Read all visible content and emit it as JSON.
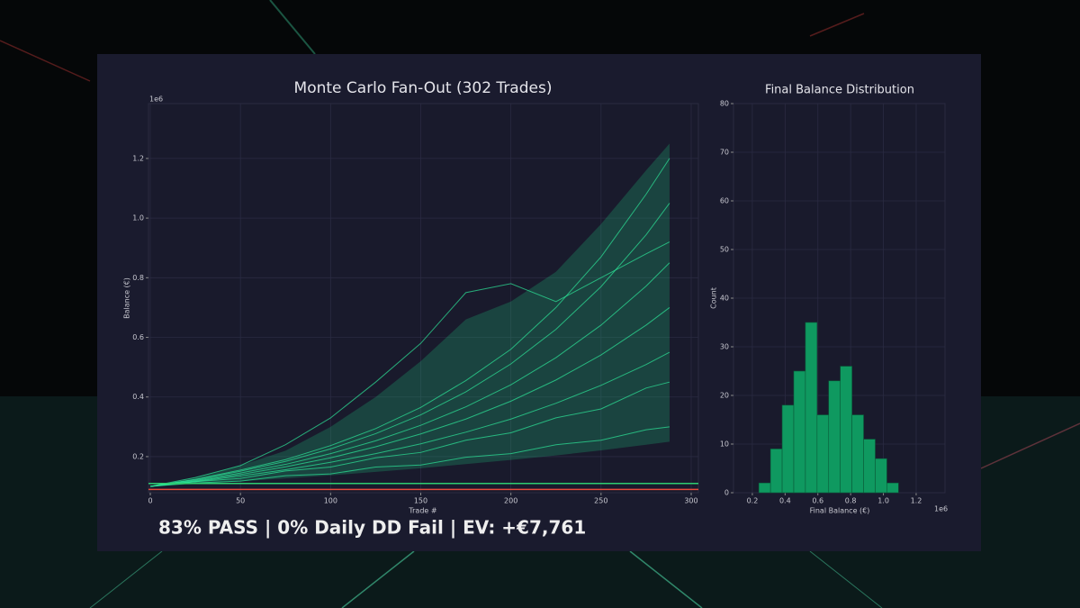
{
  "chart_data": [
    {
      "type": "line",
      "title": "Monte Carlo Fan-Out (302 Trades)",
      "xlabel": "Trade #",
      "ylabel": "Balance (€)",
      "offset_label": "1e6",
      "x": [
        0,
        25,
        50,
        75,
        100,
        125,
        150,
        175,
        200,
        225,
        250,
        275,
        288
      ],
      "band": {
        "color": "#1fd98a",
        "low": [
          0.1,
          0.108,
          0.117,
          0.127,
          0.137,
          0.149,
          0.161,
          0.175,
          0.189,
          0.204,
          0.221,
          0.24,
          0.25
        ],
        "high": [
          0.1,
          0.13,
          0.17,
          0.22,
          0.3,
          0.4,
          0.52,
          0.66,
          0.72,
          0.82,
          0.98,
          1.16,
          1.25
        ]
      },
      "series": [
        {
          "color": "#2ee89a",
          "values": [
            0.1,
            0.112,
            0.118,
            0.136,
            0.142,
            0.165,
            0.172,
            0.198,
            0.21,
            0.24,
            0.255,
            0.29,
            0.3
          ]
        },
        {
          "color": "#2ee89a",
          "values": [
            0.1,
            0.116,
            0.127,
            0.152,
            0.165,
            0.196,
            0.214,
            0.255,
            0.28,
            0.33,
            0.36,
            0.43,
            0.45
          ]
        },
        {
          "color": "#2ee89a",
          "values": [
            0.1,
            0.116,
            0.135,
            0.156,
            0.181,
            0.21,
            0.243,
            0.282,
            0.326,
            0.379,
            0.439,
            0.509,
            0.55
          ]
        },
        {
          "color": "#2ee89a",
          "values": [
            0.1,
            0.118,
            0.14,
            0.166,
            0.196,
            0.233,
            0.276,
            0.326,
            0.386,
            0.457,
            0.541,
            0.641,
            0.7
          ]
        },
        {
          "color": "#2ee89a",
          "values": [
            0.1,
            0.12,
            0.145,
            0.174,
            0.21,
            0.253,
            0.305,
            0.367,
            0.441,
            0.532,
            0.641,
            0.772,
            0.85
          ]
        },
        {
          "color": "#2ee89a",
          "values": [
            0.1,
            0.123,
            0.151,
            0.184,
            0.226,
            0.277,
            0.34,
            0.417,
            0.511,
            0.627,
            0.77,
            0.944,
            1.05
          ]
        },
        {
          "color": "#2ee89a",
          "values": [
            0.1,
            0.124,
            0.155,
            0.19,
            0.237,
            0.294,
            0.365,
            0.455,
            0.56,
            0.7,
            0.87,
            1.08,
            1.2
          ]
        },
        {
          "color": "#2ee89a",
          "values": [
            0.1,
            0.13,
            0.17,
            0.24,
            0.33,
            0.45,
            0.58,
            0.75,
            0.78,
            0.72,
            0.8,
            0.88,
            0.92
          ]
        }
      ],
      "hlines": [
        {
          "value": 0.11,
          "color": "#2ecc71"
        },
        {
          "value": 0.09,
          "color": "#e74c3c"
        }
      ],
      "xlim": [
        -1,
        304
      ],
      "xticks": [
        0,
        50,
        100,
        150,
        200,
        250,
        300
      ],
      "ylim": [
        0.079,
        1.384
      ],
      "yticks": [
        0.2,
        0.4,
        0.6,
        0.8,
        {
          "value": 1,
          "label": "1.0"
        },
        1.2
      ],
      "grid": true,
      "footer": "83% PASS | 0% Daily DD Fail | EV: +€7,761"
    },
    {
      "type": "histogram",
      "title": "Final Balance Distribution",
      "xlabel": "Final Balance (€)",
      "ylabel": "Count",
      "offset_label": "1e6",
      "color": "#0f9960",
      "bins": [
        0.24,
        0.311,
        0.382,
        0.453,
        0.524,
        0.595,
        0.666,
        0.737,
        0.808,
        0.879,
        0.95,
        1.021,
        1.092
      ],
      "counts": [
        2,
        9,
        18,
        25,
        35,
        16,
        23,
        26,
        16,
        11,
        7,
        2
      ],
      "xlim": [
        0.085,
        1.376
      ],
      "xticks": [
        0.2,
        0.4,
        0.6,
        0.8,
        {
          "value": 1,
          "label": "1.0"
        },
        1.2
      ],
      "ylim": [
        0,
        80
      ],
      "yticks": [
        0,
        10,
        20,
        30,
        40,
        50,
        60,
        70,
        80
      ],
      "grid": true
    }
  ]
}
